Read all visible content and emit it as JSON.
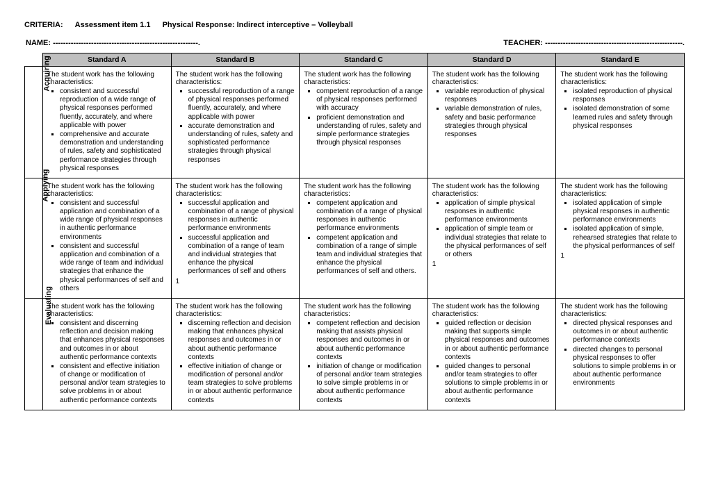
{
  "header": {
    "criteria_label": "CRITERIA:",
    "assessment_item": "Assessment item 1.1",
    "subject": "Physical Response:  Indirect interceptive – Volleyball",
    "name_label": "NAME: ---------------------------------------------------------.",
    "teacher_label": "TEACHER: ------------------------------------------------------."
  },
  "standards": [
    "Standard A",
    "Standard B",
    "Standard C",
    "Standard D",
    "Standard E"
  ],
  "intro_text": "The student work has the following characteristics:",
  "rows": [
    {
      "label": "Acquiring",
      "cells": [
        {
          "bullets": [
            "consistent and successful reproduction of a wide range of physical responses performed fluently, accurately, and where applicable with power",
            "comprehensive and accurate demonstration and understanding of rules, safety and sophisticated performance strategies through physical responses"
          ]
        },
        {
          "bullets": [
            "successful reproduction of a range of physical responses performed fluently, accurately, and where applicable with power",
            "accurate demonstration and understanding of rules, safety and sophisticated performance strategies through physical responses"
          ]
        },
        {
          "bullets": [
            "competent reproduction of a range of physical responses performed with accuracy",
            "proficient demonstration and understanding of rules, safety and simple performance strategies through physical responses"
          ]
        },
        {
          "bullets": [
            "variable reproduction of physical responses",
            "variable demonstration of rules, safety and basic performance strategies through physical responses"
          ]
        },
        {
          "bullets": [
            "isolated reproduction of physical responses",
            "isolated demonstration of some learned rules and safety through physical responses"
          ]
        }
      ]
    },
    {
      "label": "Applying",
      "cells": [
        {
          "bullets": [
            "consistent and successful application and combination of a wide range of physical responses in authentic performance environments",
            "consistent and successful application and combination of a wide range of team and individual strategies that enhance the physical performances of self and others"
          ]
        },
        {
          "bullets": [
            "successful application and combination of a range of physical responses in authentic performance environments",
            "successful application and combination of a range of team and individual strategies that enhance the physical performances of self and others"
          ],
          "footnote": "1"
        },
        {
          "bullets": [
            "competent application and combination of a range of physical responses in authentic performance environments",
            "competent application and combination of a range of simple team and individual strategies that enhance the physical performances of self and others."
          ]
        },
        {
          "bullets": [
            "application of simple physical responses in authentic performance environments",
            "application of simple team or individual strategies that relate to the physical performances of self or others"
          ],
          "footnote": "1"
        },
        {
          "bullets": [
            "isolated application of simple physical responses in authentic performance environments",
            "isolated application of simple, rehearsed strategies that relate to the physical performances of self"
          ],
          "footnote": "1"
        }
      ]
    },
    {
      "label": "Evaluating",
      "cells": [
        {
          "bullets": [
            "consistent and discerning reflection and decision making that enhances physical responses and outcomes in or about authentic performance contexts",
            "consistent and effective initiation of change or modification of personal and/or team strategies to solve problems in or about authentic performance contexts"
          ]
        },
        {
          "bullets": [
            "discerning reflection and decision making that enhances physical responses and outcomes in or about authentic performance contexts",
            "effective initiation of change or modification of personal and/or team strategies to solve problems in or about authentic performance contexts"
          ]
        },
        {
          "bullets": [
            "competent reflection and decision making that assists physical responses and outcomes in or about authentic performance contexts",
            "initiation of change or modification of personal and/or team strategies to solve simple problems in or about authentic performance contexts"
          ]
        },
        {
          "bullets": [
            "guided reflection or decision making that supports simple physical responses and outcomes in or about authentic performance contexts",
            "guided changes to personal and/or team strategies to offer solutions to simple problems in or about authentic performance contexts"
          ]
        },
        {
          "bullets": [
            "directed physical responses and outcomes in or about authentic performance contexts",
            "directed changes to personal physical responses to offer solutions to simple problems in or about authentic performance environments"
          ]
        }
      ]
    }
  ]
}
